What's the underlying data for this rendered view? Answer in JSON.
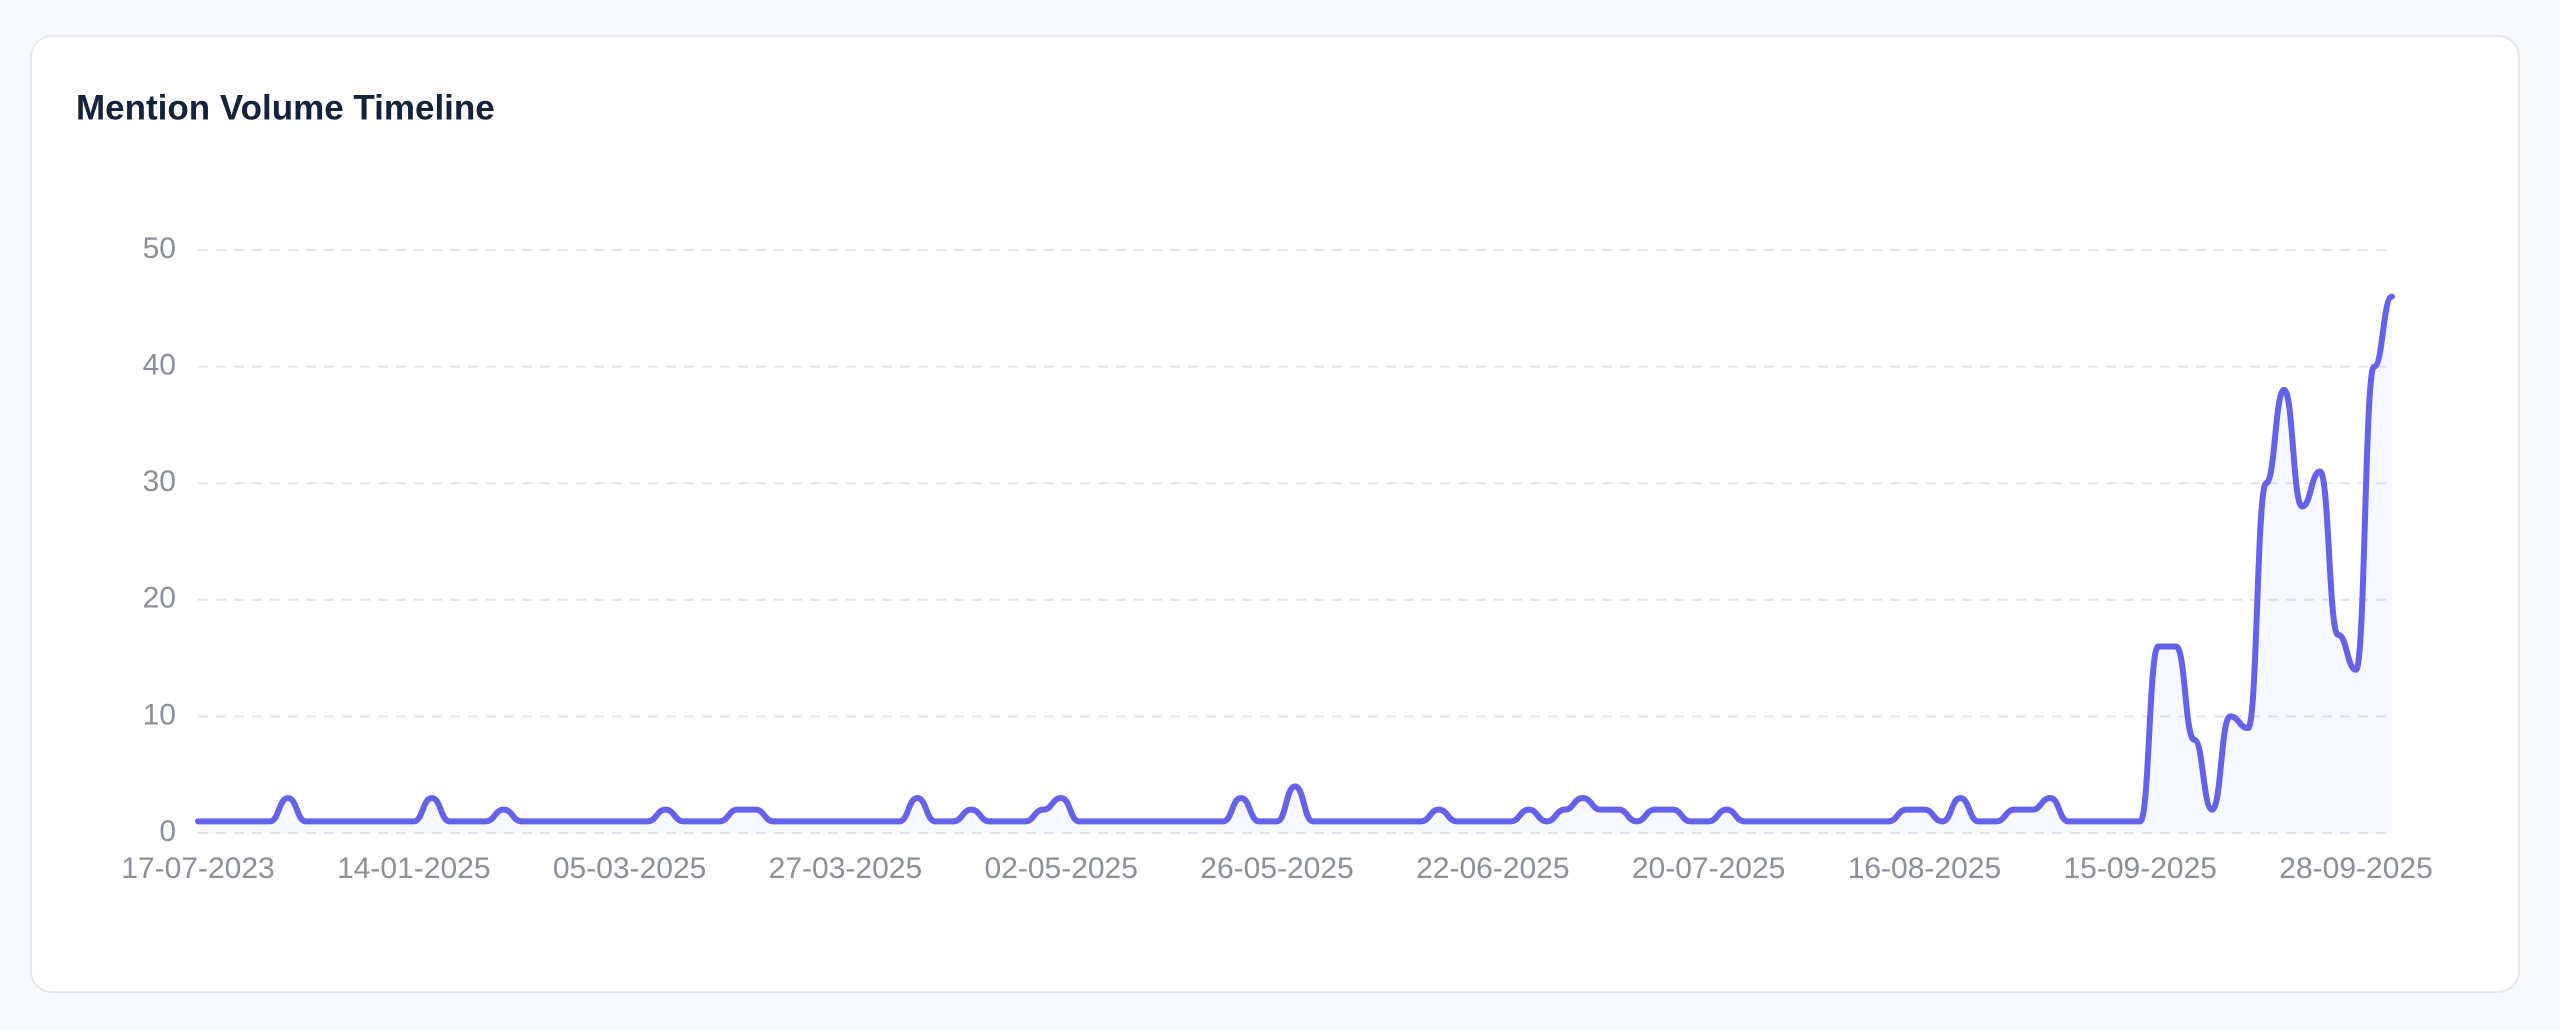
{
  "chart_data": {
    "type": "line",
    "title": "Mention Volume Timeline",
    "categories": [
      "17-07-2023",
      null,
      null,
      null,
      null,
      null,
      null,
      null,
      null,
      null,
      null,
      null,
      "14-01-2025",
      null,
      null,
      null,
      null,
      null,
      null,
      null,
      null,
      null,
      null,
      null,
      "05-03-2025",
      null,
      null,
      null,
      null,
      null,
      null,
      null,
      null,
      null,
      null,
      null,
      "27-03-2025",
      null,
      null,
      null,
      null,
      null,
      null,
      null,
      null,
      null,
      null,
      null,
      "02-05-2025",
      null,
      null,
      null,
      null,
      null,
      null,
      null,
      null,
      null,
      null,
      null,
      "26-05-2025",
      null,
      null,
      null,
      null,
      null,
      null,
      null,
      null,
      null,
      null,
      null,
      "22-06-2025",
      null,
      null,
      null,
      null,
      null,
      null,
      null,
      null,
      null,
      null,
      null,
      "20-07-2025",
      null,
      null,
      null,
      null,
      null,
      null,
      null,
      null,
      null,
      null,
      null,
      "16-08-2025",
      null,
      null,
      null,
      null,
      null,
      null,
      null,
      null,
      null,
      null,
      null,
      "15-09-2025",
      null,
      null,
      null,
      null,
      null,
      null,
      null,
      null,
      null,
      null,
      null,
      "28-09-2025",
      null,
      null
    ],
    "values": [
      1,
      1,
      1,
      1,
      1,
      3,
      1,
      1,
      1,
      1,
      1,
      1,
      1,
      3,
      1,
      1,
      1,
      2,
      1,
      1,
      1,
      1,
      1,
      1,
      1,
      1,
      2,
      1,
      1,
      1,
      2,
      2,
      1,
      1,
      1,
      1,
      1,
      1,
      1,
      1,
      3,
      1,
      1,
      2,
      1,
      1,
      1,
      2,
      3,
      1,
      1,
      1,
      1,
      1,
      1,
      1,
      1,
      1,
      3,
      1,
      1,
      4,
      1,
      1,
      1,
      1,
      1,
      1,
      1,
      2,
      1,
      1,
      1,
      1,
      2,
      1,
      2,
      3,
      2,
      2,
      1,
      2,
      2,
      1,
      1,
      2,
      1,
      1,
      1,
      1,
      1,
      1,
      1,
      1,
      1,
      2,
      2,
      1,
      3,
      1,
      1,
      2,
      2,
      3,
      1,
      1,
      1,
      1,
      1,
      16,
      16,
      8,
      2,
      10,
      9,
      30,
      38,
      28,
      31,
      17,
      14,
      40,
      46
    ],
    "color": "#6462ea",
    "ylim": [
      0,
      50
    ],
    "yticks": [
      0,
      10,
      20,
      30,
      40,
      50
    ],
    "grid": true
  }
}
